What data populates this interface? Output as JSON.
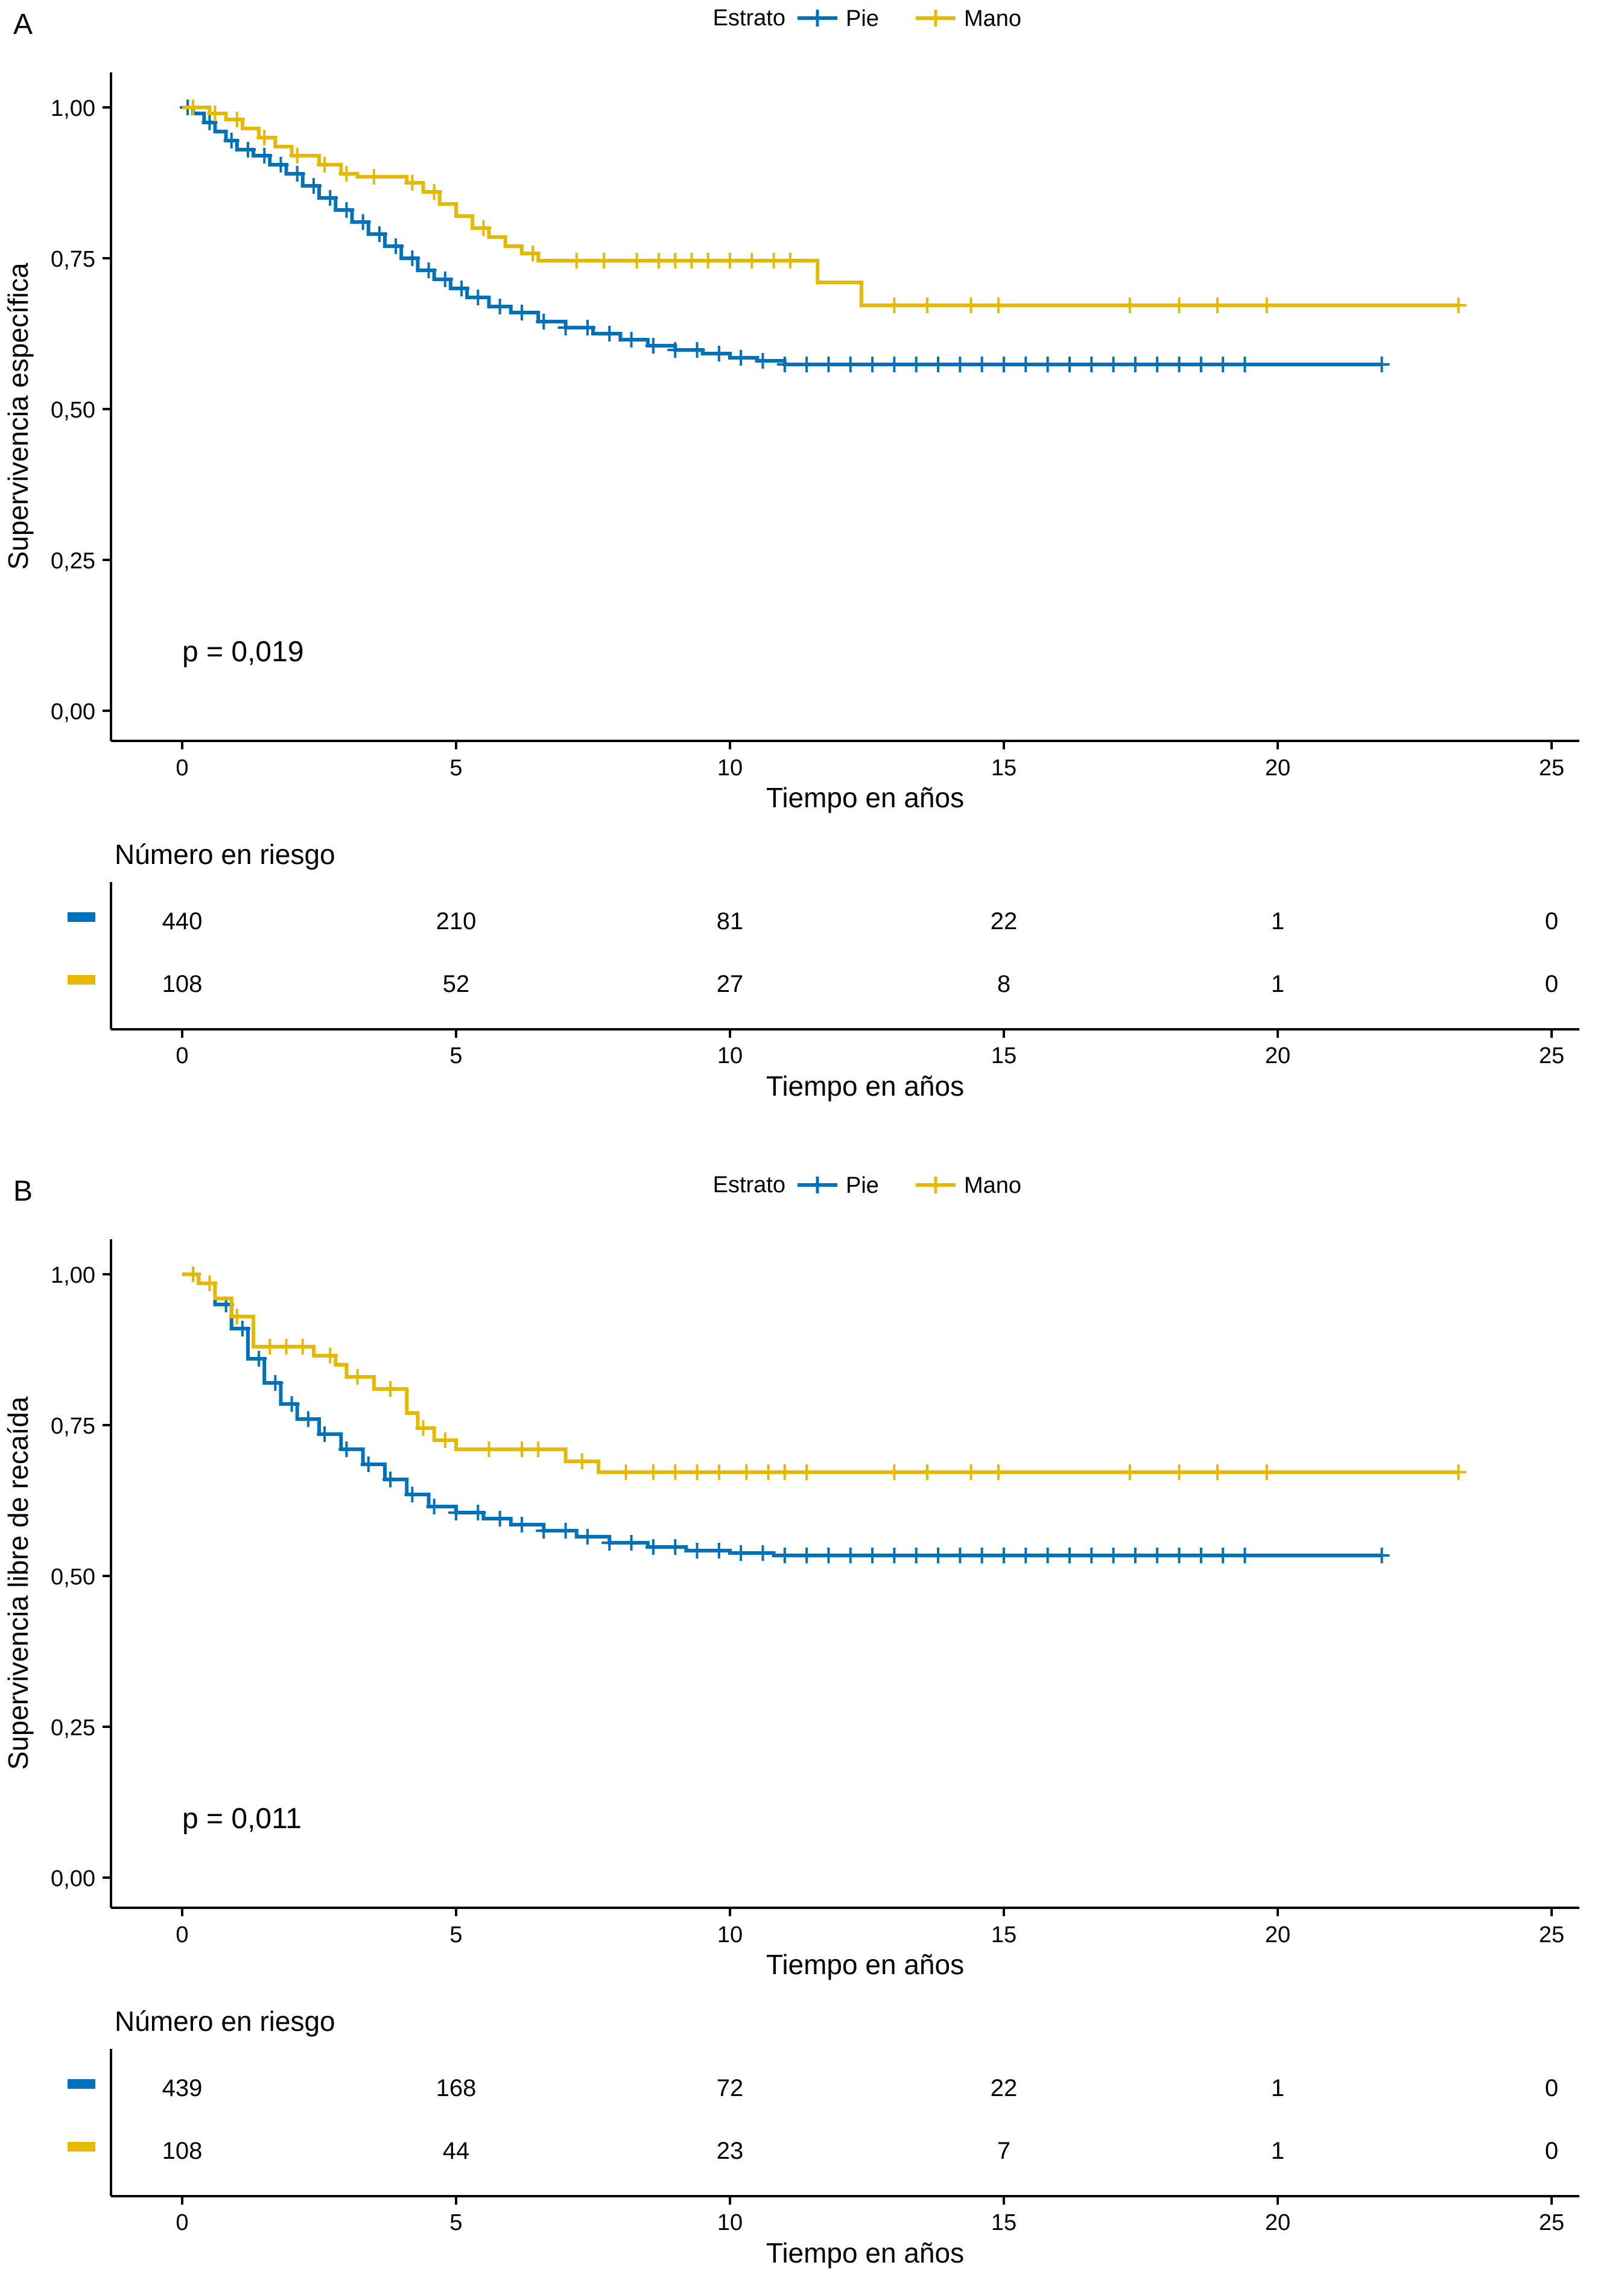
{
  "colors": {
    "pie": "#0072BB",
    "mano": "#E7B800",
    "axis": "#000000"
  },
  "chart_data": [
    {
      "type": "line",
      "panel_label": "A",
      "legend": {
        "title": "Estrato",
        "placement": "top",
        "entries": [
          "Pie",
          "Mano"
        ]
      },
      "xlabel": "Tiempo en años",
      "ylabel": "Supervivencia específica",
      "xlim": [
        0,
        25
      ],
      "ylim": [
        0,
        1
      ],
      "x_ticks": [
        0,
        5,
        10,
        15,
        20,
        25
      ],
      "x_tick_labels": [
        "0",
        "5",
        "10",
        "15",
        "20",
        "25"
      ],
      "y_ticks": [
        0,
        0.25,
        0.5,
        0.75,
        1
      ],
      "y_tick_labels": [
        "0,00",
        "0,25",
        "0,50",
        "0,75",
        "1,00"
      ],
      "annotation": "p = 0,019",
      "series": [
        {
          "name": "Pie",
          "x": [
            0,
            0.2,
            0.4,
            0.6,
            0.8,
            1.0,
            1.3,
            1.6,
            1.9,
            2.2,
            2.5,
            2.8,
            3.1,
            3.4,
            3.7,
            4.0,
            4.3,
            4.6,
            4.9,
            5.2,
            5.6,
            6.0,
            6.5,
            7.0,
            7.5,
            8.0,
            8.5,
            9.0,
            9.5,
            10.0,
            10.5,
            11.0,
            21.9
          ],
          "y": [
            1.0,
            0.99,
            0.975,
            0.96,
            0.945,
            0.93,
            0.92,
            0.905,
            0.89,
            0.87,
            0.85,
            0.83,
            0.81,
            0.79,
            0.77,
            0.75,
            0.73,
            0.715,
            0.7,
            0.685,
            0.67,
            0.66,
            0.645,
            0.635,
            0.625,
            0.615,
            0.605,
            0.598,
            0.592,
            0.585,
            0.58,
            0.574,
            0.574
          ],
          "censor_x": [
            0.1,
            0.5,
            0.9,
            1.2,
            1.5,
            1.8,
            2.1,
            2.4,
            2.7,
            3.0,
            3.3,
            3.6,
            3.9,
            4.2,
            4.5,
            4.8,
            5.1,
            5.4,
            5.8,
            6.2,
            6.6,
            7.0,
            7.4,
            7.8,
            8.2,
            8.6,
            9.0,
            9.4,
            9.8,
            10.2,
            10.6,
            11.0,
            11.4,
            11.8,
            12.2,
            12.6,
            13.0,
            13.4,
            13.8,
            14.2,
            14.6,
            15.0,
            15.4,
            15.8,
            16.2,
            16.6,
            17.0,
            17.4,
            17.8,
            18.2,
            18.6,
            19.0,
            19.4,
            21.9
          ]
        },
        {
          "name": "Mano",
          "x": [
            0,
            0.5,
            0.8,
            1.1,
            1.4,
            1.7,
            2.0,
            2.5,
            2.9,
            3.2,
            4.1,
            4.4,
            4.7,
            5.0,
            5.3,
            5.6,
            5.9,
            6.2,
            6.5,
            11.6,
            12.4,
            23.3
          ],
          "y": [
            1.0,
            0.99,
            0.98,
            0.965,
            0.95,
            0.935,
            0.92,
            0.905,
            0.89,
            0.885,
            0.875,
            0.86,
            0.84,
            0.82,
            0.8,
            0.785,
            0.77,
            0.758,
            0.746,
            0.71,
            0.672,
            0.672
          ],
          "censor_x": [
            0.2,
            0.6,
            1.0,
            1.5,
            2.1,
            2.6,
            3.0,
            3.5,
            4.2,
            4.6,
            5.5,
            6.4,
            7.2,
            7.7,
            8.3,
            8.7,
            9.0,
            9.3,
            9.6,
            10.0,
            10.4,
            10.8,
            11.1,
            13.0,
            13.6,
            14.4,
            14.9,
            17.3,
            18.2,
            18.9,
            19.8,
            23.3
          ]
        }
      ],
      "risk_table": {
        "title": "Número en riesgo",
        "xlabel": "Tiempo en años",
        "times": [
          0,
          5,
          10,
          15,
          20,
          25
        ],
        "rows": [
          {
            "name": "Pie",
            "values": [
              "440",
              "210",
              "81",
              "22",
              "1",
              "0"
            ]
          },
          {
            "name": "Mano",
            "values": [
              "108",
              "52",
              "27",
              "8",
              "1",
              "0"
            ]
          }
        ]
      }
    },
    {
      "type": "line",
      "panel_label": "B",
      "legend": {
        "title": "Estrato",
        "placement": "top",
        "entries": [
          "Pie",
          "Mano"
        ]
      },
      "xlabel": "Tiempo en años",
      "ylabel": "Supervivencia libre de recaída",
      "xlim": [
        0,
        25
      ],
      "ylim": [
        0,
        1
      ],
      "x_ticks": [
        0,
        5,
        10,
        15,
        20,
        25
      ],
      "x_tick_labels": [
        "0",
        "5",
        "10",
        "15",
        "20",
        "25"
      ],
      "y_ticks": [
        0,
        0.25,
        0.5,
        0.75,
        1
      ],
      "y_tick_labels": [
        "0,00",
        "0,25",
        "0,50",
        "0,75",
        "1,00"
      ],
      "annotation": "p = 0,011",
      "series": [
        {
          "name": "Pie",
          "x": [
            0,
            0.3,
            0.6,
            0.9,
            1.2,
            1.5,
            1.8,
            2.1,
            2.5,
            2.9,
            3.3,
            3.7,
            4.1,
            4.5,
            5.0,
            5.5,
            6.0,
            6.6,
            7.2,
            7.8,
            8.5,
            9.2,
            10.0,
            10.8,
            21.9
          ],
          "y": [
            1.0,
            0.985,
            0.95,
            0.91,
            0.86,
            0.82,
            0.785,
            0.76,
            0.735,
            0.71,
            0.685,
            0.66,
            0.635,
            0.615,
            0.605,
            0.595,
            0.585,
            0.575,
            0.565,
            0.555,
            0.548,
            0.542,
            0.538,
            0.534,
            0.534
          ],
          "censor_x": [
            0.2,
            0.8,
            1.1,
            1.4,
            1.7,
            2.0,
            2.3,
            2.6,
            3.0,
            3.4,
            3.8,
            4.2,
            4.6,
            5.0,
            5.4,
            5.8,
            6.2,
            6.6,
            7.0,
            7.4,
            7.8,
            8.2,
            8.6,
            9.0,
            9.4,
            9.8,
            10.2,
            10.6,
            11.0,
            11.4,
            11.8,
            12.2,
            12.6,
            13.0,
            13.4,
            13.8,
            14.2,
            14.6,
            15.0,
            15.4,
            15.8,
            16.2,
            16.6,
            17.0,
            17.4,
            17.8,
            18.2,
            18.6,
            19.0,
            19.4,
            21.9
          ]
        },
        {
          "name": "Mano",
          "x": [
            0,
            0.3,
            0.6,
            0.9,
            1.3,
            2.4,
            2.8,
            3.0,
            3.5,
            4.1,
            4.3,
            4.6,
            5.0,
            7.0,
            7.6,
            23.3
          ],
          "y": [
            1.0,
            0.985,
            0.96,
            0.93,
            0.88,
            0.865,
            0.85,
            0.83,
            0.81,
            0.77,
            0.745,
            0.725,
            0.71,
            0.69,
            0.672,
            0.672
          ],
          "censor_x": [
            0.2,
            0.5,
            1.0,
            1.6,
            1.9,
            2.2,
            2.7,
            3.2,
            3.8,
            4.4,
            4.8,
            5.6,
            6.2,
            6.5,
            7.3,
            8.1,
            8.6,
            9.0,
            9.4,
            9.8,
            10.3,
            10.7,
            11.0,
            11.4,
            13.0,
            13.6,
            14.4,
            14.9,
            17.3,
            18.2,
            18.9,
            19.8,
            23.3
          ]
        }
      ],
      "risk_table": {
        "title": "Número en riesgo",
        "xlabel": "Tiempo en años",
        "times": [
          0,
          5,
          10,
          15,
          20,
          25
        ],
        "rows": [
          {
            "name": "Pie",
            "values": [
              "439",
              "168",
              "72",
              "22",
              "1",
              "0"
            ]
          },
          {
            "name": "Mano",
            "values": [
              "108",
              "44",
              "23",
              "7",
              "1",
              "0"
            ]
          }
        ]
      }
    }
  ]
}
